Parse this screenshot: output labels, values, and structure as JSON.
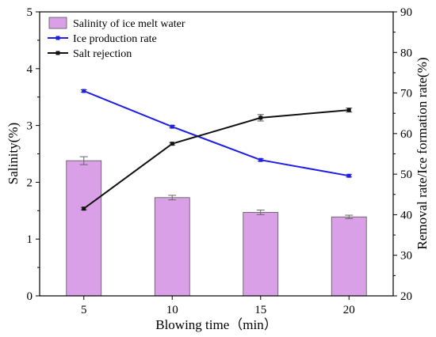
{
  "chart_data": {
    "type": "bar",
    "categories": [
      "5",
      "10",
      "15",
      "20"
    ],
    "xlabel": "Blowing time（min）",
    "ylabel_left": "Salinity(%)",
    "ylabel_right": "Removal rate/Ice formation rate(%)",
    "ylim_left": [
      0,
      5
    ],
    "yticks_left": [
      "0",
      "1",
      "2",
      "3",
      "4",
      "5"
    ],
    "ylim_right": [
      20,
      90
    ],
    "yticks_right": [
      "20",
      "30",
      "40",
      "50",
      "60",
      "70",
      "80",
      "90"
    ],
    "grid": false,
    "legend_position": "top-left",
    "bars": {
      "name": "Salinity of ice melt water",
      "axis": "left",
      "values": [
        2.38,
        1.73,
        1.47,
        1.39
      ],
      "errors": [
        0.07,
        0.04,
        0.04,
        0.03
      ],
      "color": "#d9a0e8",
      "edge_color": "#555555"
    },
    "series": [
      {
        "name": "Ice production rate",
        "axis": "right",
        "values": [
          70.5,
          61.7,
          53.5,
          49.6
        ],
        "errors": [
          0.3,
          0.3,
          0.3,
          0.3
        ],
        "color": "#1e1ee6",
        "marker": "square"
      },
      {
        "name": "Salt rejection",
        "axis": "right",
        "values": [
          41.5,
          57.5,
          63.9,
          65.8
        ],
        "errors": [
          0.3,
          0.3,
          0.8,
          0.5
        ],
        "color": "#111111",
        "marker": "square"
      }
    ]
  }
}
